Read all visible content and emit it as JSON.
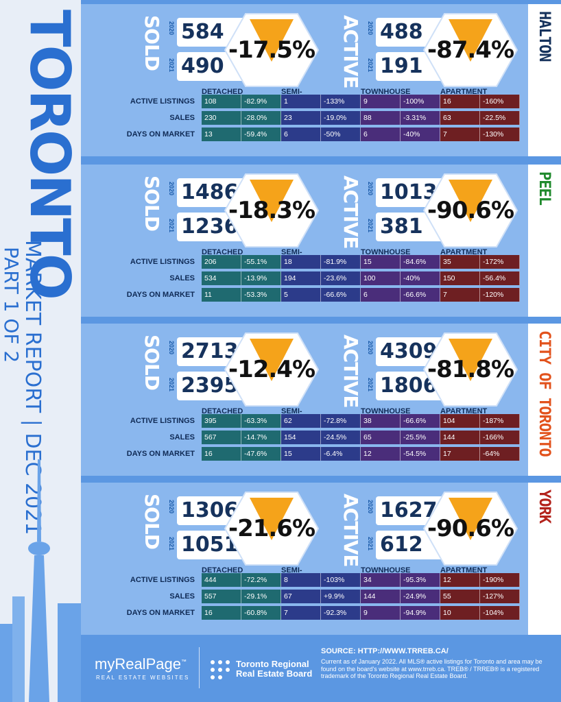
{
  "title": "TORONTO",
  "subtitle": "MARKET REPORT | DEC 2021",
  "part": "PART 1 OF 2",
  "colors": {
    "background": "#5b97e2",
    "panel": "#8ab7ee",
    "arrow": "#f5a31a",
    "detached": "#1f6a70",
    "semi": "#2c3b8a",
    "townhouse": "#4a2d7a",
    "apartment": "#6e1f22"
  },
  "labels": {
    "sold": "SOLD",
    "active": "ACTIVE",
    "y2020": "2020",
    "y2021": "2021",
    "detached": "DETACHED",
    "semi": "SEMI-DETACHED",
    "townhouse": "TOWNHOUSE",
    "apartment": "APARTMENT",
    "active_listings": "ACTIVE LISTINGS",
    "sales": "SALES",
    "dom": "DAYS ON MARKET"
  },
  "regions": [
    {
      "name": "HALTON",
      "name_color": "#16325c",
      "sold": {
        "y2020": "584",
        "y2021": "490",
        "pct": "-17.5%"
      },
      "active": {
        "y2020": "488",
        "y2021": "191",
        "pct": "-87.4%"
      },
      "rows": [
        [
          "108",
          "-82.9%",
          "1",
          "-133%",
          "9",
          "-100%",
          "16",
          "-160%"
        ],
        [
          "230",
          "-28.0%",
          "23",
          "-19.0%",
          "88",
          "-3.31%",
          "63",
          "-22.5%"
        ],
        [
          "13",
          "-59.4%",
          "6",
          "-50%",
          "6",
          "-40%",
          "7",
          "-130%"
        ]
      ]
    },
    {
      "name": "PEEL",
      "name_color": "#1f8a2c",
      "sold": {
        "y2020": "1486",
        "y2021": "1236",
        "pct": "-18.3%"
      },
      "active": {
        "y2020": "1013",
        "y2021": "381",
        "pct": "-90.6%"
      },
      "rows": [
        [
          "206",
          "-55.1%",
          "18",
          "-81.9%",
          "15",
          "-84.6%",
          "35",
          "-172%"
        ],
        [
          "534",
          "-13.9%",
          "194",
          "-23.6%",
          "100",
          "-40%",
          "150",
          "-56.4%"
        ],
        [
          "11",
          "-53.3%",
          "5",
          "-66.6%",
          "6",
          "-66.6%",
          "7",
          "-120%"
        ]
      ]
    },
    {
      "name": "CITY OF TORONTO",
      "name_color": "#e2521c",
      "sold": {
        "y2020": "2713",
        "y2021": "2395",
        "pct": "-12.4%"
      },
      "active": {
        "y2020": "4309",
        "y2021": "1806",
        "pct": "-81.8%"
      },
      "rows": [
        [
          "395",
          "-63.3%",
          "62",
          "-72.8%",
          "38",
          "-66.6%",
          "104",
          "-187%"
        ],
        [
          "567",
          "-14.7%",
          "154",
          "-24.5%",
          "65",
          "-25.5%",
          "144",
          "-166%"
        ],
        [
          "16",
          "-47.6%",
          "15",
          "-6.4%",
          "12",
          "-54.5%",
          "17",
          "-64%"
        ]
      ]
    },
    {
      "name": "YORK",
      "name_color": "#b3231c",
      "sold": {
        "y2020": "1306",
        "y2021": "1051",
        "pct": "-21.6%"
      },
      "active": {
        "y2020": "1627",
        "y2021": "612",
        "pct": "-90.6%"
      },
      "rows": [
        [
          "444",
          "-72.2%",
          "8",
          "-103%",
          "34",
          "-95.3%",
          "12",
          "-190%"
        ],
        [
          "557",
          "-29.1%",
          "67",
          "+9.9%",
          "144",
          "-24.9%",
          "55",
          "-127%"
        ],
        [
          "16",
          "-60.8%",
          "7",
          "-92.3%",
          "9",
          "-94.9%",
          "10",
          "-104%"
        ]
      ]
    }
  ],
  "footer": {
    "logo1": "myRealPage",
    "logo1_tm": "™",
    "logo1_sub": "REAL ESTATE WEBSITES",
    "logo2": "Toronto Regional Real Estate Board",
    "source": "SOURCE: HTTP://WWW.TRREB.CA/",
    "note": "Current as of January 2022.  All MLS® active listings for Toronto and area may be found on the board's website at www.trreb.ca. TREB® / TRREB® is a registered trademark of the Toronto Regional Real Estate Board."
  }
}
